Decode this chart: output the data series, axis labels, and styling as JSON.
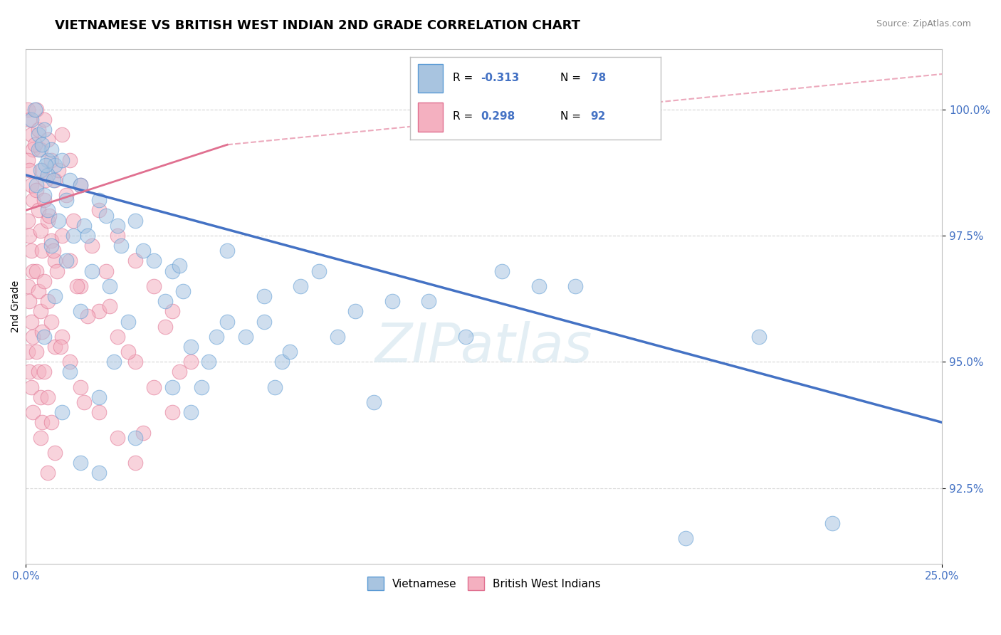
{
  "title": "VIETNAMESE VS BRITISH WEST INDIAN 2ND GRADE CORRELATION CHART",
  "source_text": "Source: ZipAtlas.com",
  "ylabel": "2nd Grade",
  "xlim": [
    0.0,
    25.0
  ],
  "ylim": [
    91.0,
    101.2
  ],
  "yticks": [
    92.5,
    95.0,
    97.5,
    100.0
  ],
  "ytick_labels": [
    "92.5%",
    "95.0%",
    "97.5%",
    "100.0%"
  ],
  "xticks": [
    0.0,
    25.0
  ],
  "xtick_labels": [
    "0.0%",
    "25.0%"
  ],
  "blue_color": "#a8c4e0",
  "blue_edge": "#5b9bd5",
  "pink_color": "#f4b0c0",
  "pink_edge": "#e07090",
  "blue_line_color": "#4472c4",
  "pink_line_color": "#e07090",
  "blue_line": {
    "x0": 0.0,
    "x1": 25.0,
    "y0": 98.7,
    "y1": 93.8
  },
  "pink_line_solid": {
    "x0": 0.0,
    "x1": 5.5,
    "y0": 98.0,
    "y1": 99.3
  },
  "pink_line_dash": {
    "x0": 5.5,
    "x1": 25.0,
    "y0": 99.3,
    "y1": 100.7
  },
  "blue_R": -0.313,
  "blue_N": 78,
  "pink_R": 0.298,
  "pink_N": 92,
  "watermark": "ZIPatlas",
  "background_color": "#ffffff",
  "blue_scatter": [
    [
      0.15,
      99.8
    ],
    [
      0.25,
      100.0
    ],
    [
      0.35,
      99.5
    ],
    [
      0.5,
      99.6
    ],
    [
      0.6,
      99.0
    ],
    [
      0.7,
      99.2
    ],
    [
      0.4,
      98.8
    ],
    [
      0.8,
      98.9
    ],
    [
      1.0,
      99.0
    ],
    [
      1.2,
      98.6
    ],
    [
      0.3,
      98.5
    ],
    [
      0.5,
      98.3
    ],
    [
      1.5,
      98.5
    ],
    [
      2.0,
      98.2
    ],
    [
      0.6,
      98.0
    ],
    [
      0.9,
      97.8
    ],
    [
      1.3,
      97.5
    ],
    [
      2.5,
      97.7
    ],
    [
      3.0,
      97.8
    ],
    [
      0.7,
      97.3
    ],
    [
      1.1,
      97.0
    ],
    [
      1.8,
      96.8
    ],
    [
      2.3,
      96.5
    ],
    [
      3.5,
      97.0
    ],
    [
      4.0,
      96.8
    ],
    [
      0.8,
      96.3
    ],
    [
      1.5,
      96.0
    ],
    [
      2.8,
      95.8
    ],
    [
      4.5,
      95.3
    ],
    [
      5.0,
      95.0
    ],
    [
      0.5,
      95.5
    ],
    [
      1.2,
      94.8
    ],
    [
      2.0,
      94.3
    ],
    [
      6.0,
      95.5
    ],
    [
      7.0,
      95.0
    ],
    [
      1.0,
      94.0
    ],
    [
      3.0,
      93.5
    ],
    [
      5.5,
      97.2
    ],
    [
      8.0,
      96.8
    ],
    [
      10.0,
      96.2
    ],
    [
      1.5,
      93.0
    ],
    [
      4.0,
      94.5
    ],
    [
      7.5,
      96.5
    ],
    [
      12.0,
      95.5
    ],
    [
      14.0,
      96.5
    ],
    [
      2.0,
      92.8
    ],
    [
      4.5,
      94.0
    ],
    [
      6.5,
      95.8
    ],
    [
      9.0,
      96.0
    ],
    [
      11.0,
      96.2
    ],
    [
      0.6,
      98.7
    ],
    [
      1.1,
      98.2
    ],
    [
      2.2,
      97.9
    ],
    [
      3.2,
      97.2
    ],
    [
      4.2,
      96.9
    ],
    [
      0.35,
      99.2
    ],
    [
      0.55,
      98.9
    ],
    [
      0.75,
      98.6
    ],
    [
      1.6,
      97.7
    ],
    [
      2.6,
      97.3
    ],
    [
      5.5,
      95.8
    ],
    [
      6.5,
      96.3
    ],
    [
      4.8,
      94.5
    ],
    [
      7.2,
      95.2
    ],
    [
      8.5,
      95.5
    ],
    [
      15.0,
      96.5
    ],
    [
      18.0,
      91.5
    ],
    [
      13.0,
      96.8
    ],
    [
      20.0,
      95.5
    ],
    [
      22.0,
      91.8
    ],
    [
      3.8,
      96.2
    ],
    [
      5.2,
      95.5
    ],
    [
      2.4,
      95.0
    ],
    [
      6.8,
      94.5
    ],
    [
      9.5,
      94.2
    ],
    [
      0.45,
      99.3
    ],
    [
      1.7,
      97.5
    ],
    [
      4.3,
      96.4
    ]
  ],
  "pink_scatter": [
    [
      0.05,
      100.0
    ],
    [
      0.1,
      99.8
    ],
    [
      0.15,
      99.5
    ],
    [
      0.2,
      99.2
    ],
    [
      0.05,
      99.0
    ],
    [
      0.1,
      98.8
    ],
    [
      0.15,
      98.5
    ],
    [
      0.2,
      98.2
    ],
    [
      0.05,
      97.8
    ],
    [
      0.1,
      97.5
    ],
    [
      0.15,
      97.2
    ],
    [
      0.2,
      96.8
    ],
    [
      0.05,
      96.5
    ],
    [
      0.1,
      96.2
    ],
    [
      0.15,
      95.8
    ],
    [
      0.2,
      95.5
    ],
    [
      0.05,
      95.2
    ],
    [
      0.1,
      94.8
    ],
    [
      0.15,
      94.5
    ],
    [
      0.2,
      94.0
    ],
    [
      0.3,
      100.0
    ],
    [
      0.35,
      99.6
    ],
    [
      0.4,
      99.2
    ],
    [
      0.45,
      98.8
    ],
    [
      0.3,
      98.4
    ],
    [
      0.35,
      98.0
    ],
    [
      0.4,
      97.6
    ],
    [
      0.45,
      97.2
    ],
    [
      0.3,
      96.8
    ],
    [
      0.35,
      96.4
    ],
    [
      0.4,
      96.0
    ],
    [
      0.45,
      95.6
    ],
    [
      0.3,
      95.2
    ],
    [
      0.35,
      94.8
    ],
    [
      0.4,
      94.3
    ],
    [
      0.45,
      93.8
    ],
    [
      0.5,
      99.8
    ],
    [
      0.6,
      99.4
    ],
    [
      0.7,
      99.0
    ],
    [
      0.8,
      98.6
    ],
    [
      0.5,
      98.2
    ],
    [
      0.6,
      97.8
    ],
    [
      0.7,
      97.4
    ],
    [
      0.8,
      97.0
    ],
    [
      0.5,
      96.6
    ],
    [
      0.6,
      96.2
    ],
    [
      0.7,
      95.8
    ],
    [
      0.8,
      95.3
    ],
    [
      0.5,
      94.8
    ],
    [
      0.6,
      94.3
    ],
    [
      0.7,
      93.8
    ],
    [
      0.8,
      93.2
    ],
    [
      1.0,
      99.5
    ],
    [
      1.2,
      99.0
    ],
    [
      1.5,
      98.5
    ],
    [
      2.0,
      98.0
    ],
    [
      1.0,
      97.5
    ],
    [
      1.2,
      97.0
    ],
    [
      1.5,
      96.5
    ],
    [
      2.0,
      96.0
    ],
    [
      1.0,
      95.5
    ],
    [
      1.2,
      95.0
    ],
    [
      1.5,
      94.5
    ],
    [
      2.0,
      94.0
    ],
    [
      2.5,
      97.5
    ],
    [
      3.0,
      97.0
    ],
    [
      3.5,
      96.5
    ],
    [
      4.0,
      96.0
    ],
    [
      2.5,
      95.5
    ],
    [
      3.0,
      95.0
    ],
    [
      3.5,
      94.5
    ],
    [
      4.0,
      94.0
    ],
    [
      2.5,
      93.5
    ],
    [
      3.0,
      93.0
    ],
    [
      0.9,
      98.8
    ],
    [
      1.1,
      98.3
    ],
    [
      1.3,
      97.8
    ],
    [
      1.8,
      97.3
    ],
    [
      2.2,
      96.8
    ],
    [
      0.25,
      99.3
    ],
    [
      0.55,
      98.6
    ],
    [
      0.65,
      97.9
    ],
    [
      0.75,
      97.2
    ],
    [
      1.4,
      96.5
    ],
    [
      1.7,
      95.9
    ],
    [
      2.8,
      95.2
    ],
    [
      4.5,
      95.0
    ],
    [
      0.85,
      96.8
    ],
    [
      3.8,
      95.7
    ],
    [
      0.95,
      95.3
    ],
    [
      2.3,
      96.1
    ],
    [
      4.2,
      94.8
    ],
    [
      0.4,
      93.5
    ],
    [
      0.6,
      92.8
    ],
    [
      1.6,
      94.2
    ],
    [
      3.2,
      93.6
    ]
  ]
}
